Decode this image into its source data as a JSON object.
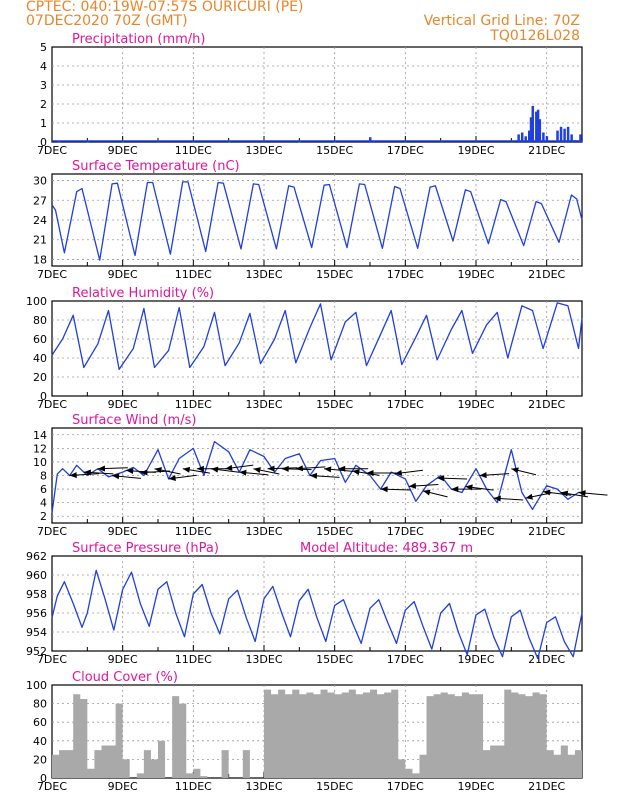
{
  "header": {
    "line1": "CPTEC:  040:19W-07:57S  OURICURI (PE)",
    "line2": "07DEC2020 70Z (GMT)",
    "grid_note": "Vertical Grid Line: 70Z",
    "code": "TQ0126L028"
  },
  "colors": {
    "header": "#e8862a",
    "title": "#e0179a",
    "series": "#1f3fe0",
    "cloud": "#a9a9a9",
    "grid": "#9a9a9a"
  },
  "x_ticks": [
    "7DEC",
    "9DEC",
    "11DEC",
    "13DEC",
    "15DEC",
    "17DEC",
    "19DEC",
    "21DEC"
  ],
  "chart_data": [
    {
      "id": "precip",
      "type": "bar",
      "title": "Precipitation (mm/h)",
      "ylim": [
        0,
        5
      ],
      "yticks": [
        0,
        1,
        2,
        3,
        4,
        5
      ],
      "note": "",
      "x_unit": "days since 7DEC 00Z",
      "series": [
        {
          "x": [
            0.2,
            1.0,
            2.0,
            3.0,
            4.0,
            5.0,
            6.0,
            7.0,
            8.0,
            9.0,
            9.1,
            10.0,
            11.0,
            12.0,
            13.0,
            13.2,
            13.3,
            13.4,
            13.5,
            13.55,
            13.6,
            13.7,
            13.75,
            13.8,
            13.9,
            14.0,
            14.3,
            14.4,
            14.5,
            14.6,
            14.7,
            14.8,
            14.95
          ],
          "y": [
            0.03,
            0.03,
            0.03,
            0.04,
            0.03,
            0.03,
            0.05,
            0.03,
            0.03,
            0.25,
            0.05,
            0.03,
            0.05,
            0.05,
            0.05,
            0.4,
            0.5,
            0.3,
            0.6,
            1.3,
            1.9,
            1.6,
            1.7,
            1.2,
            0.5,
            0.3,
            0.6,
            0.8,
            0.7,
            0.8,
            0.4,
            0.1,
            0.4
          ]
        }
      ]
    },
    {
      "id": "temp",
      "type": "line",
      "title": "Surface Temperature (nC)",
      "ylim": [
        17,
        31
      ],
      "yticks": [
        18,
        21,
        24,
        27,
        30
      ],
      "note": "",
      "x_unit": "days since 7DEC 00Z",
      "series": [
        {
          "x": [
            0,
            0.1,
            0.35,
            0.7,
            0.85,
            1.35,
            1.7,
            1.85,
            2.35,
            2.7,
            2.85,
            3.35,
            3.7,
            3.85,
            4.35,
            4.7,
            4.85,
            5.35,
            5.7,
            5.85,
            6.35,
            6.7,
            6.85,
            7.35,
            7.7,
            7.85,
            8.35,
            8.7,
            8.85,
            9.35,
            9.7,
            9.85,
            10.35,
            10.7,
            10.85,
            11.35,
            11.7,
            11.85,
            12.35,
            12.7,
            12.85,
            13.35,
            13.7,
            13.85,
            14.35,
            14.7,
            14.85,
            15.0
          ],
          "y": [
            26.3,
            25.5,
            19.0,
            28.3,
            28.8,
            17.9,
            29.5,
            29.6,
            18.6,
            29.7,
            29.7,
            18.8,
            29.8,
            29.8,
            19.2,
            29.7,
            29.6,
            19.6,
            29.5,
            29.4,
            19.6,
            29.2,
            29.0,
            19.8,
            29.3,
            29.4,
            19.8,
            29.5,
            29.4,
            19.7,
            29.1,
            28.8,
            19.7,
            29.0,
            29.2,
            20.8,
            28.6,
            28.3,
            20.4,
            27.1,
            26.8,
            20.1,
            26.8,
            26.5,
            20.6,
            27.8,
            27.2,
            24.0
          ]
        }
      ]
    },
    {
      "id": "rh",
      "type": "line",
      "title": "Relative Humidity (%)",
      "ylim": [
        0,
        100
      ],
      "yticks": [
        0,
        20,
        40,
        60,
        80,
        100
      ],
      "note": "",
      "x_unit": "days since 7DEC 00Z",
      "series": [
        {
          "x": [
            0,
            0.3,
            0.6,
            0.9,
            1.3,
            1.6,
            1.9,
            2.3,
            2.6,
            2.9,
            3.3,
            3.6,
            3.9,
            4.3,
            4.6,
            4.9,
            5.3,
            5.6,
            5.9,
            6.3,
            6.6,
            6.9,
            7.3,
            7.6,
            7.9,
            8.3,
            8.6,
            8.9,
            9.3,
            9.6,
            9.9,
            10.3,
            10.6,
            10.9,
            11.3,
            11.6,
            11.9,
            12.3,
            12.6,
            12.9,
            13.3,
            13.6,
            13.9,
            14.3,
            14.6,
            14.9,
            15.0
          ],
          "y": [
            43,
            60,
            85,
            30,
            55,
            90,
            28,
            50,
            92,
            30,
            48,
            93,
            30,
            52,
            88,
            32,
            56,
            87,
            34,
            60,
            90,
            35,
            72,
            97,
            38,
            78,
            88,
            32,
            65,
            90,
            33,
            62,
            85,
            38,
            70,
            90,
            45,
            75,
            88,
            40,
            95,
            90,
            50,
            98,
            95,
            50,
            82
          ]
        }
      ]
    },
    {
      "id": "wind",
      "type": "line",
      "title": "Surface Wind (m/s)",
      "ylim": [
        1,
        15
      ],
      "yticks": [
        2,
        4,
        6,
        8,
        10,
        12,
        14
      ],
      "note": "",
      "x_unit": "days since 7DEC 00Z",
      "series": [
        {
          "x": [
            0,
            0.15,
            0.3,
            0.5,
            0.7,
            1.0,
            1.3,
            1.6,
            2.0,
            2.3,
            2.6,
            3.0,
            3.3,
            3.6,
            4.0,
            4.3,
            4.6,
            5.0,
            5.3,
            5.6,
            6.0,
            6.3,
            6.6,
            7.0,
            7.3,
            7.6,
            8.0,
            8.3,
            8.6,
            9.0,
            9.3,
            9.6,
            10.0,
            10.3,
            10.6,
            11.0,
            11.3,
            11.6,
            12.0,
            12.3,
            12.6,
            13.0,
            13.3,
            13.6,
            14.0,
            14.3,
            14.6,
            14.9,
            15.0
          ],
          "y": [
            2.5,
            8.2,
            9.0,
            8.0,
            9.5,
            8.0,
            9.0,
            7.8,
            8.5,
            9.2,
            8.0,
            11.8,
            7.5,
            10.5,
            12.0,
            8.0,
            13.0,
            11.5,
            8.5,
            11.8,
            10.8,
            8.5,
            10.5,
            11.2,
            8.0,
            10.2,
            10.5,
            7.0,
            9.5,
            8.0,
            6.0,
            8.5,
            7.5,
            4.2,
            6.5,
            8.0,
            6.0,
            5.5,
            9.0,
            6.0,
            4.0,
            11.8,
            5.5,
            3.0,
            6.5,
            6.0,
            4.5,
            5.5,
            5.5
          ]
        }
      ],
      "barbs": [
        {
          "x": 0.5,
          "dir": 100
        },
        {
          "x": 0.9,
          "dir": 80
        },
        {
          "x": 1.3,
          "dir": 95
        },
        {
          "x": 1.7,
          "dir": 75
        },
        {
          "x": 2.1,
          "dir": 80
        },
        {
          "x": 2.5,
          "dir": 100
        },
        {
          "x": 2.9,
          "dir": 60
        },
        {
          "x": 3.3,
          "dir": 110
        },
        {
          "x": 3.7,
          "dir": 65
        },
        {
          "x": 4.1,
          "dir": 90
        },
        {
          "x": 4.5,
          "dir": 70
        },
        {
          "x": 4.9,
          "dir": 110
        },
        {
          "x": 5.3,
          "dir": 75
        },
        {
          "x": 5.7,
          "dir": 60
        },
        {
          "x": 6.1,
          "dir": 95
        },
        {
          "x": 6.5,
          "dir": 85
        },
        {
          "x": 6.9,
          "dir": 100
        },
        {
          "x": 7.3,
          "dir": 80
        },
        {
          "x": 7.7,
          "dir": 75
        },
        {
          "x": 8.1,
          "dir": 90
        },
        {
          "x": 8.5,
          "dir": 65
        },
        {
          "x": 8.9,
          "dir": 90
        },
        {
          "x": 9.3,
          "dir": 85
        },
        {
          "x": 9.7,
          "dir": 110
        },
        {
          "x": 10.1,
          "dir": 100
        },
        {
          "x": 10.5,
          "dir": 55
        },
        {
          "x": 10.9,
          "dir": 85
        },
        {
          "x": 11.3,
          "dir": 90
        },
        {
          "x": 11.7,
          "dir": 70
        },
        {
          "x": 12.1,
          "dir": 100
        },
        {
          "x": 12.5,
          "dir": 80
        },
        {
          "x": 13.0,
          "dir": 55
        },
        {
          "x": 13.4,
          "dir": 120
        },
        {
          "x": 13.9,
          "dir": 70
        },
        {
          "x": 14.4,
          "dir": 65
        },
        {
          "x": 14.9,
          "dir": 75
        }
      ]
    },
    {
      "id": "pres",
      "type": "line",
      "title": "Surface Pressure (hPa)",
      "ylim": [
        952,
        962
      ],
      "yticks": [
        952,
        954,
        956,
        958,
        960,
        962
      ],
      "note": "Model Altitude: 489.367 m",
      "x_unit": "days since 7DEC 00Z",
      "series": [
        {
          "x": [
            0,
            0.15,
            0.35,
            0.6,
            0.85,
            1.0,
            1.25,
            1.5,
            1.75,
            2.0,
            2.25,
            2.5,
            2.75,
            3.0,
            3.25,
            3.5,
            3.75,
            4.0,
            4.25,
            4.5,
            4.75,
            5.0,
            5.25,
            5.5,
            5.75,
            6.0,
            6.25,
            6.5,
            6.75,
            7.0,
            7.25,
            7.5,
            7.75,
            8.0,
            8.25,
            8.5,
            8.75,
            9.0,
            9.25,
            9.5,
            9.75,
            10.0,
            10.25,
            10.5,
            10.75,
            11.0,
            11.25,
            11.5,
            11.75,
            12.0,
            12.25,
            12.5,
            12.75,
            13.0,
            13.25,
            13.5,
            13.75,
            14.0,
            14.25,
            14.5,
            14.75,
            15.0
          ],
          "y": [
            955.5,
            957.8,
            959.3,
            957.0,
            954.5,
            956.0,
            960.5,
            957.5,
            954.2,
            958.5,
            960.3,
            957.0,
            954.6,
            958.5,
            959.3,
            956.0,
            953.5,
            958.0,
            959.0,
            956.0,
            953.8,
            957.5,
            958.4,
            955.5,
            953.0,
            957.5,
            958.8,
            956.0,
            953.5,
            957.3,
            958.5,
            955.5,
            953.0,
            956.8,
            957.4,
            955.0,
            952.8,
            956.5,
            957.4,
            955.0,
            952.8,
            956.3,
            957.2,
            954.6,
            952.2,
            956.0,
            957.0,
            954.0,
            951.6,
            955.8,
            956.4,
            953.5,
            951.4,
            955.6,
            956.3,
            953.4,
            951.2,
            955.0,
            955.6,
            953.0,
            951.4,
            956.0
          ]
        }
      ]
    },
    {
      "id": "cloud",
      "type": "area",
      "title": "Cloud Cover (%)",
      "ylim": [
        0,
        100
      ],
      "yticks": [
        0,
        20,
        40,
        60,
        80,
        100
      ],
      "note": "",
      "x_unit": "days since 7DEC 00Z",
      "series": [
        {
          "x": [
            0.0,
            0.2,
            0.4,
            0.6,
            0.8,
            1.0,
            1.2,
            1.4,
            1.6,
            1.8,
            2.0,
            2.2,
            2.4,
            2.6,
            2.8,
            3.0,
            3.2,
            3.4,
            3.6,
            3.8,
            4.0,
            4.2,
            4.4,
            4.6,
            4.8,
            5.0,
            5.2,
            5.4,
            5.6,
            5.8,
            6.0,
            6.2,
            6.4,
            6.6,
            6.8,
            7.0,
            7.2,
            7.4,
            7.6,
            7.8,
            8.0,
            8.2,
            8.4,
            8.6,
            8.8,
            9.0,
            9.2,
            9.4,
            9.6,
            9.8,
            10.0,
            10.2,
            10.4,
            10.6,
            10.8,
            11.0,
            11.2,
            11.4,
            11.6,
            11.8,
            12.0,
            12.2,
            12.4,
            12.6,
            12.8,
            13.0,
            13.2,
            13.4,
            13.6,
            13.8,
            14.0,
            14.2,
            14.4,
            14.6,
            14.8,
            15.0
          ],
          "y": [
            25,
            30,
            30,
            90,
            85,
            10,
            30,
            35,
            35,
            80,
            20,
            0,
            5,
            30,
            20,
            40,
            0,
            88,
            80,
            5,
            10,
            2,
            0,
            0,
            30,
            0,
            0,
            30,
            0,
            0,
            95,
            90,
            95,
            90,
            95,
            90,
            92,
            90,
            95,
            92,
            90,
            92,
            95,
            90,
            92,
            95,
            90,
            92,
            95,
            20,
            10,
            5,
            25,
            88,
            90,
            92,
            90,
            88,
            92,
            90,
            90,
            30,
            35,
            35,
            95,
            92,
            90,
            88,
            92,
            90,
            30,
            25,
            35,
            25,
            30,
            80
          ]
        }
      ]
    }
  ]
}
